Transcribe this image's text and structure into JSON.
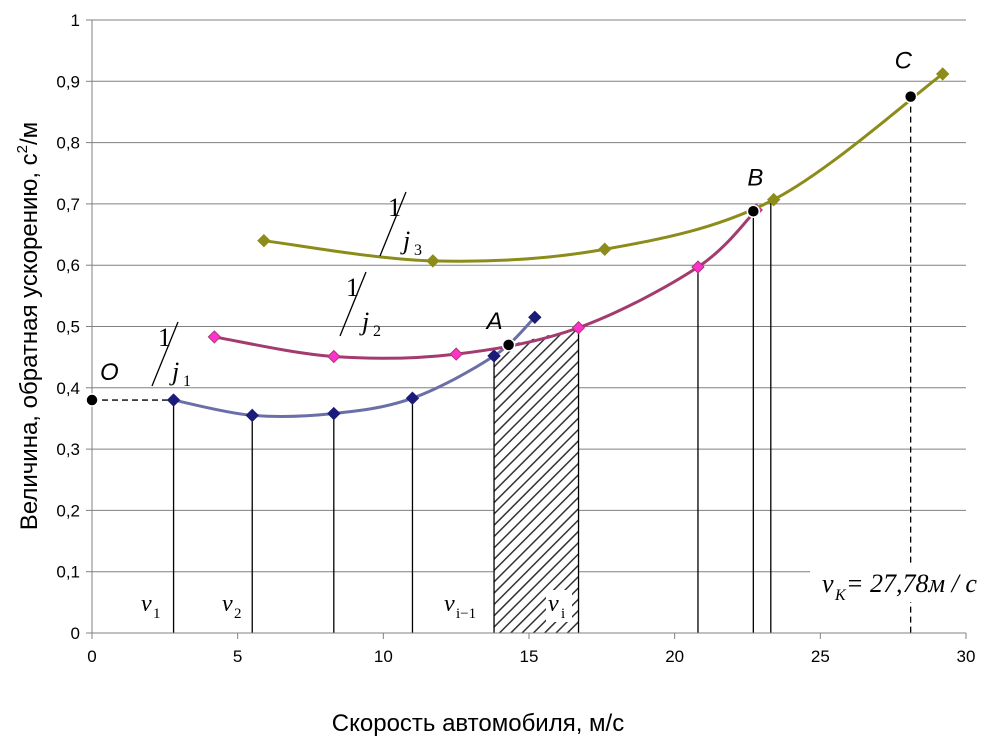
{
  "chart_data": {
    "type": "line",
    "xlabel": "Скорость автомобиля, м/с",
    "ylabel_main": "Величина, обратная ускорению, с",
    "ylabel_sup": "2",
    "ylabel_tail": "/м",
    "xlim": [
      0,
      30
    ],
    "ylim": [
      0,
      1
    ],
    "x_ticks": [
      "0",
      "5",
      "10",
      "15",
      "20",
      "25",
      "30"
    ],
    "y_ticks": [
      "0",
      "0,1",
      "0,2",
      "0,3",
      "0,4",
      "0,5",
      "0,6",
      "0,7",
      "0,8",
      "0,9",
      "1"
    ],
    "grid": "horizontal",
    "series": [
      {
        "color": "#6b6fa8",
        "marker_color": "#1b1b7a",
        "x": [
          2.8,
          5.5,
          8.3,
          11.0,
          13.8,
          15.2
        ],
        "y": [
          0.38,
          0.355,
          0.358,
          0.383,
          0.452,
          0.515
        ]
      },
      {
        "color": "#a33b6e",
        "marker_color": "#ff33cc",
        "x": [
          4.2,
          8.3,
          12.5,
          16.7,
          20.8,
          22.8
        ],
        "y": [
          0.483,
          0.451,
          0.455,
          0.498,
          0.597,
          0.69
        ]
      },
      {
        "color": "#8c8c1a",
        "marker_color": "#8c8c1a",
        "x": [
          5.9,
          11.7,
          17.6,
          23.4,
          29.2
        ],
        "y": [
          0.64,
          0.607,
          0.626,
          0.707,
          0.912
        ]
      }
    ],
    "points": [
      {
        "label": "O",
        "x": 0,
        "y": 0.38
      },
      {
        "label": "A",
        "x": 14.3,
        "y": 0.47
      },
      {
        "label": "B",
        "x": 22.7,
        "y": 0.688
      },
      {
        "label": "C",
        "x": 28.1,
        "y": 0.875
      }
    ],
    "vertical_lines_x": [
      2.8,
      5.5,
      8.3,
      11.0,
      13.8,
      16.7,
      20.8,
      22.7,
      23.3
    ],
    "hatched_region_x": [
      13.8,
      16.7
    ],
    "curve_labels": [
      {
        "num": "1",
        "den": "j",
        "sub": "1"
      },
      {
        "num": "1",
        "den": "j",
        "sub": "2"
      },
      {
        "num": "1",
        "den": "j",
        "sub": "3"
      }
    ],
    "v_labels": [
      {
        "base": "v",
        "sub": "1"
      },
      {
        "base": "v",
        "sub": "2"
      },
      {
        "base": "v",
        "sub": "i−1"
      },
      {
        "base": "v",
        "sub": "i"
      }
    ],
    "vk_label": {
      "base": "v",
      "sub": "K",
      "rest": " = 27,78м / с"
    }
  }
}
